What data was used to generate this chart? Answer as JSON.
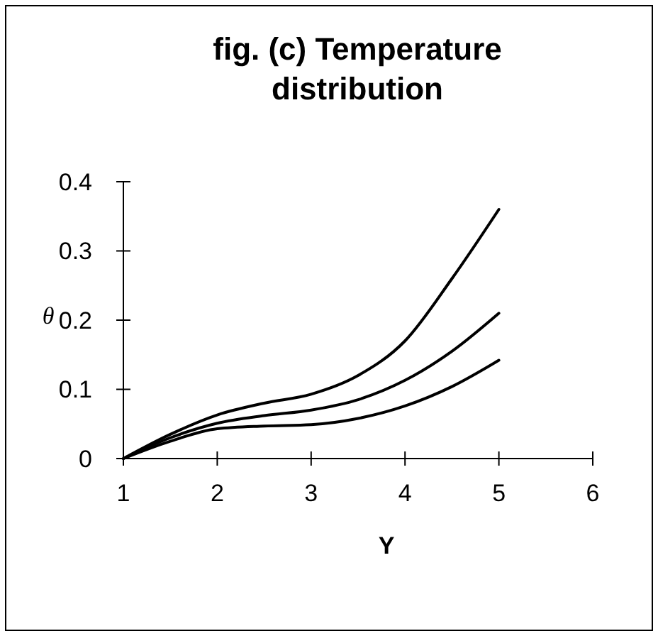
{
  "chart_data": {
    "type": "line",
    "title": "fig. (c) Temperature distribution",
    "xlabel": "Y",
    "ylabel": "θ",
    "xlim": [
      1,
      6
    ],
    "ylim": [
      0,
      0.4
    ],
    "xticks": [
      1,
      2,
      3,
      4,
      5,
      6
    ],
    "yticks": [
      0,
      0.1,
      0.2,
      0.3,
      0.4
    ],
    "grid": false,
    "marker": "none",
    "line_style": "solid",
    "series": [
      {
        "color": "#000000",
        "x": [
          1,
          1.5,
          2,
          2.5,
          3,
          3.5,
          4,
          4.5,
          5
        ],
        "values": [
          0,
          0.035,
          0.063,
          0.08,
          0.093,
          0.12,
          0.17,
          0.26,
          0.36
        ]
      },
      {
        "color": "#000000",
        "x": [
          1,
          1.5,
          2,
          2.5,
          3,
          3.5,
          4,
          4.5,
          5
        ],
        "values": [
          0,
          0.03,
          0.051,
          0.062,
          0.07,
          0.085,
          0.113,
          0.155,
          0.21
        ]
      },
      {
        "color": "#000000",
        "x": [
          1,
          1.5,
          2,
          2.5,
          3,
          3.5,
          4,
          4.5,
          5
        ],
        "values": [
          0,
          0.025,
          0.043,
          0.047,
          0.049,
          0.058,
          0.076,
          0.104,
          0.142
        ]
      }
    ]
  }
}
